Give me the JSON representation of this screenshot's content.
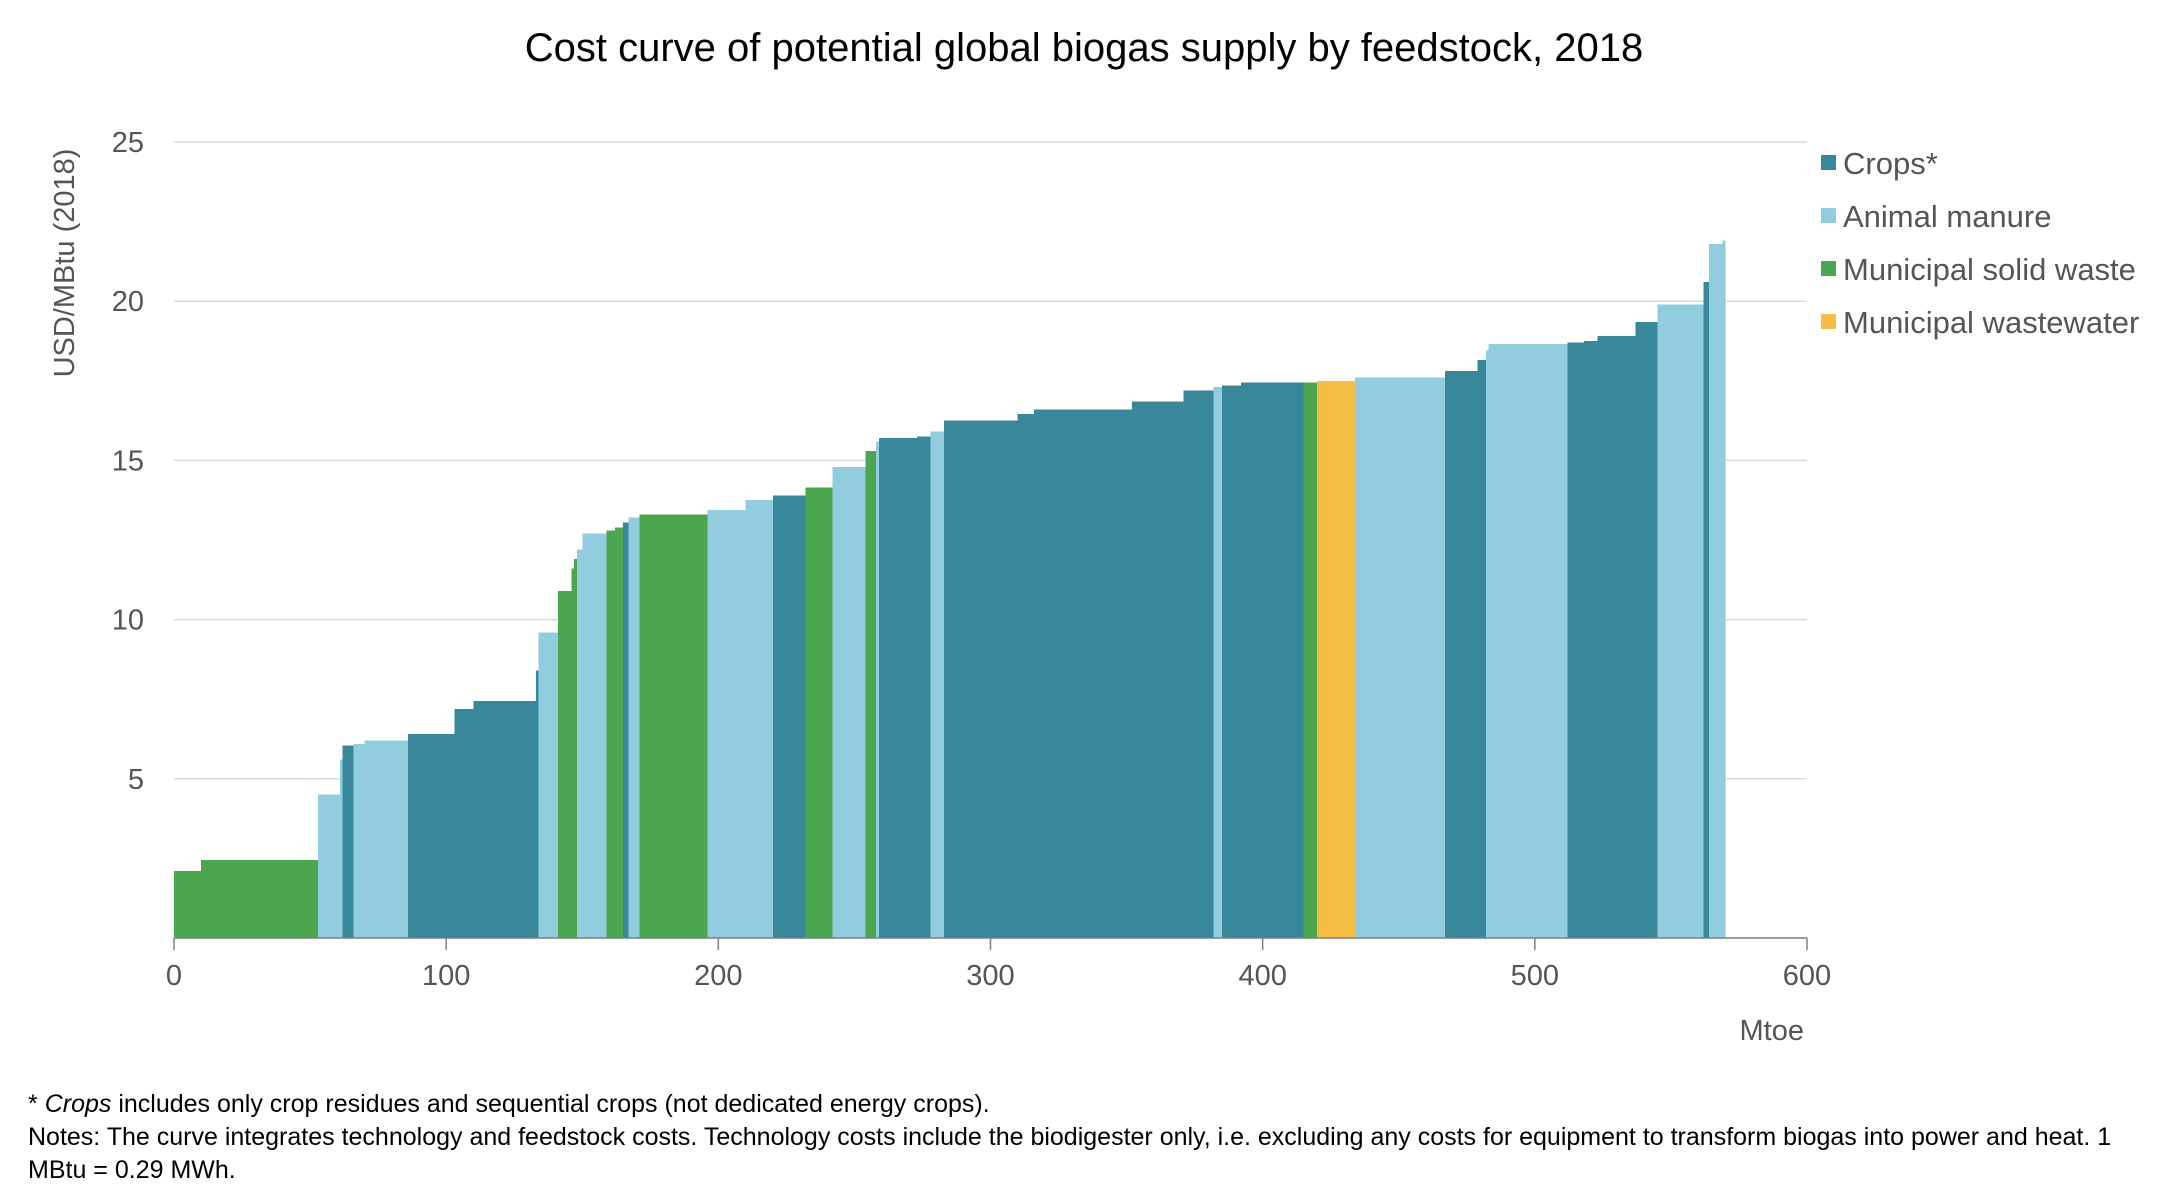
{
  "chart_data": {
    "type": "bar",
    "title": "Cost curve of potential global biogas supply by feedstock, 2018",
    "xlabel": "Mtoe",
    "ylabel": "USD/MBtu (2018)",
    "xlim": [
      0,
      600
    ],
    "ylim": [
      0,
      25
    ],
    "x_ticks": [
      "0",
      "100",
      "200",
      "300",
      "400",
      "500",
      "600"
    ],
    "y_ticks": [
      "5",
      "10",
      "15",
      "20",
      "25"
    ],
    "grid": "horizontal",
    "legend_position": "right",
    "categories": [
      {
        "name": "Crops*",
        "color": "#38879b"
      },
      {
        "name": "Animal manure",
        "color": "#92cddf"
      },
      {
        "name": "Municipal solid waste",
        "color": "#4ba64f"
      },
      {
        "name": "Municipal wastewater",
        "color": "#f5bd41"
      }
    ],
    "segments": [
      {
        "x0": 0,
        "x1": 10,
        "value": 2.1,
        "feedstock": "Municipal solid waste"
      },
      {
        "x0": 10,
        "x1": 53,
        "value": 2.45,
        "feedstock": "Municipal solid waste"
      },
      {
        "x0": 53,
        "x1": 61,
        "value": 4.5,
        "feedstock": "Animal manure"
      },
      {
        "x0": 61,
        "x1": 62,
        "value": 5.6,
        "feedstock": "Animal manure"
      },
      {
        "x0": 62,
        "x1": 66,
        "value": 6.05,
        "feedstock": "Crops*"
      },
      {
        "x0": 66,
        "x1": 70,
        "value": 6.1,
        "feedstock": "Animal manure"
      },
      {
        "x0": 70,
        "x1": 86,
        "value": 6.2,
        "feedstock": "Animal manure"
      },
      {
        "x0": 86,
        "x1": 103,
        "value": 6.4,
        "feedstock": "Crops*"
      },
      {
        "x0": 103,
        "x1": 110,
        "value": 7.2,
        "feedstock": "Crops*"
      },
      {
        "x0": 110,
        "x1": 133,
        "value": 7.45,
        "feedstock": "Crops*"
      },
      {
        "x0": 133,
        "x1": 134,
        "value": 8.4,
        "feedstock": "Crops*"
      },
      {
        "x0": 134,
        "x1": 141,
        "value": 9.6,
        "feedstock": "Animal manure"
      },
      {
        "x0": 141,
        "x1": 146,
        "value": 10.9,
        "feedstock": "Municipal solid waste"
      },
      {
        "x0": 146,
        "x1": 147,
        "value": 11.6,
        "feedstock": "Municipal solid waste"
      },
      {
        "x0": 147,
        "x1": 148,
        "value": 11.9,
        "feedstock": "Municipal solid waste"
      },
      {
        "x0": 148,
        "x1": 150,
        "value": 12.2,
        "feedstock": "Animal manure"
      },
      {
        "x0": 150,
        "x1": 159,
        "value": 12.7,
        "feedstock": "Animal manure"
      },
      {
        "x0": 159,
        "x1": 162,
        "value": 12.8,
        "feedstock": "Municipal solid waste"
      },
      {
        "x0": 162,
        "x1": 165,
        "value": 12.9,
        "feedstock": "Municipal solid waste"
      },
      {
        "x0": 165,
        "x1": 167,
        "value": 13.05,
        "feedstock": "Crops*"
      },
      {
        "x0": 167,
        "x1": 171,
        "value": 13.2,
        "feedstock": "Animal manure"
      },
      {
        "x0": 171,
        "x1": 196,
        "value": 13.3,
        "feedstock": "Municipal solid waste"
      },
      {
        "x0": 196,
        "x1": 210,
        "value": 13.45,
        "feedstock": "Animal manure"
      },
      {
        "x0": 210,
        "x1": 220,
        "value": 13.75,
        "feedstock": "Animal manure"
      },
      {
        "x0": 220,
        "x1": 232,
        "value": 13.9,
        "feedstock": "Crops*"
      },
      {
        "x0": 232,
        "x1": 242,
        "value": 14.15,
        "feedstock": "Municipal solid waste"
      },
      {
        "x0": 242,
        "x1": 254,
        "value": 14.8,
        "feedstock": "Animal manure"
      },
      {
        "x0": 254,
        "x1": 258,
        "value": 15.3,
        "feedstock": "Municipal solid waste"
      },
      {
        "x0": 258,
        "x1": 259,
        "value": 15.6,
        "feedstock": "Animal manure"
      },
      {
        "x0": 259,
        "x1": 273,
        "value": 15.7,
        "feedstock": "Crops*"
      },
      {
        "x0": 273,
        "x1": 278,
        "value": 15.75,
        "feedstock": "Crops*"
      },
      {
        "x0": 278,
        "x1": 283,
        "value": 15.9,
        "feedstock": "Animal manure"
      },
      {
        "x0": 283,
        "x1": 310,
        "value": 16.25,
        "feedstock": "Crops*"
      },
      {
        "x0": 310,
        "x1": 316,
        "value": 16.45,
        "feedstock": "Crops*"
      },
      {
        "x0": 316,
        "x1": 352,
        "value": 16.6,
        "feedstock": "Crops*"
      },
      {
        "x0": 352,
        "x1": 371,
        "value": 16.85,
        "feedstock": "Crops*"
      },
      {
        "x0": 371,
        "x1": 382,
        "value": 17.2,
        "feedstock": "Crops*"
      },
      {
        "x0": 382,
        "x1": 385,
        "value": 17.3,
        "feedstock": "Animal manure"
      },
      {
        "x0": 385,
        "x1": 392,
        "value": 17.35,
        "feedstock": "Crops*"
      },
      {
        "x0": 392,
        "x1": 415,
        "value": 17.45,
        "feedstock": "Crops*"
      },
      {
        "x0": 415,
        "x1": 420,
        "value": 17.45,
        "feedstock": "Municipal solid waste"
      },
      {
        "x0": 420,
        "x1": 434,
        "value": 17.5,
        "feedstock": "Municipal wastewater"
      },
      {
        "x0": 434,
        "x1": 467,
        "value": 17.6,
        "feedstock": "Animal manure"
      },
      {
        "x0": 467,
        "x1": 479,
        "value": 17.8,
        "feedstock": "Crops*"
      },
      {
        "x0": 479,
        "x1": 482,
        "value": 18.15,
        "feedstock": "Crops*"
      },
      {
        "x0": 482,
        "x1": 483,
        "value": 18.45,
        "feedstock": "Animal manure"
      },
      {
        "x0": 483,
        "x1": 512,
        "value": 18.65,
        "feedstock": "Animal manure"
      },
      {
        "x0": 512,
        "x1": 518,
        "value": 18.7,
        "feedstock": "Crops*"
      },
      {
        "x0": 518,
        "x1": 523,
        "value": 18.75,
        "feedstock": "Crops*"
      },
      {
        "x0": 523,
        "x1": 537,
        "value": 18.9,
        "feedstock": "Crops*"
      },
      {
        "x0": 537,
        "x1": 545,
        "value": 19.35,
        "feedstock": "Crops*"
      },
      {
        "x0": 545,
        "x1": 562,
        "value": 19.9,
        "feedstock": "Animal manure"
      },
      {
        "x0": 562,
        "x1": 564,
        "value": 20.6,
        "feedstock": "Crops*"
      },
      {
        "x0": 564,
        "x1": 569,
        "value": 21.8,
        "feedstock": "Animal manure"
      },
      {
        "x0": 569,
        "x1": 570,
        "value": 21.9,
        "feedstock": "Animal manure"
      }
    ]
  },
  "notes": {
    "footnote_prefix": "* ",
    "footnote_italic": "Crops",
    "footnote_rest": " includes only crop residues and sequential crops (not dedicated energy crops).",
    "notes_text": "Notes: The curve integrates technology and feedstock costs. Technology costs include the biodigester only, i.e. excluding any costs for equipment to transform biogas into power and heat. 1 MBtu = 0.29 MWh."
  }
}
